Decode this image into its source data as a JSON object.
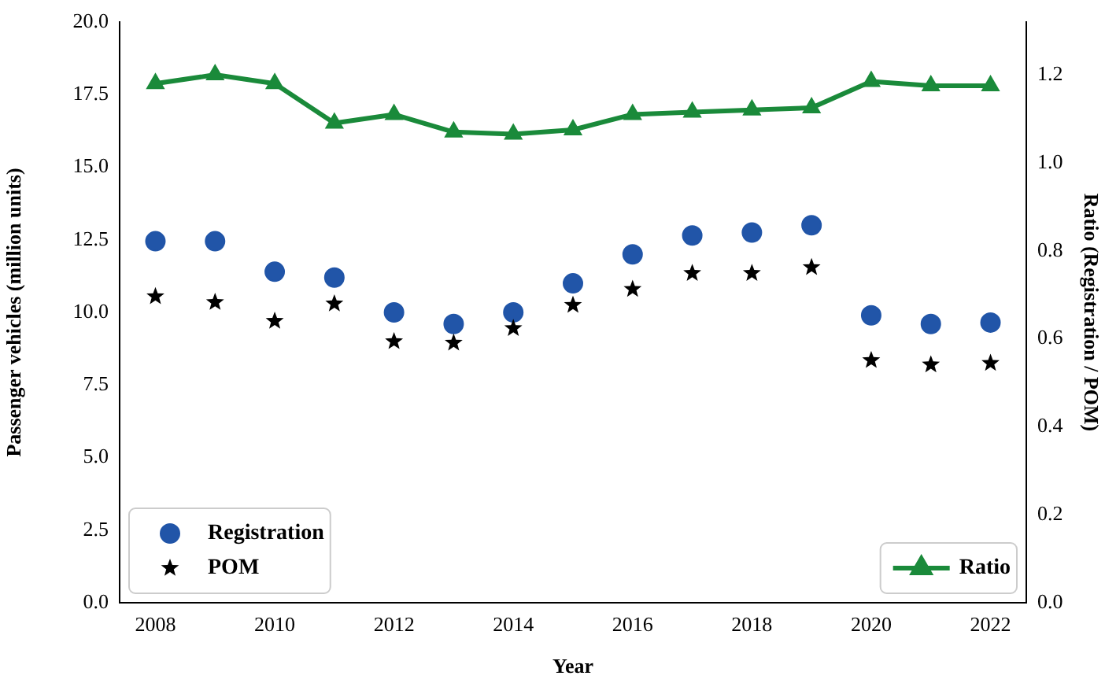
{
  "chart_data": {
    "type": "scatter",
    "xlabel": "Year",
    "ylabel": "Passenger vehicles (million units)",
    "y2label": "Ratio (Registration / POM)",
    "x": [
      2008,
      2009,
      2010,
      2011,
      2012,
      2013,
      2014,
      2015,
      2016,
      2017,
      2018,
      2019,
      2020,
      2021,
      2022
    ],
    "xlim": [
      2007.4,
      2022.6
    ],
    "xticks": [
      2008,
      2010,
      2012,
      2014,
      2016,
      2018,
      2020,
      2022
    ],
    "ylim": [
      0,
      20
    ],
    "yticks": [
      {
        "value": 0,
        "label": "0.0"
      },
      {
        "value": 2.5,
        "label": "2.5"
      },
      {
        "value": 5,
        "label": "5.0"
      },
      {
        "value": 7.5,
        "label": "7.5"
      },
      {
        "value": 10,
        "label": "10.0"
      },
      {
        "value": 12.5,
        "label": "12.5"
      },
      {
        "value": 15,
        "label": "15.0"
      },
      {
        "value": 17.5,
        "label": "17.5"
      },
      {
        "value": 20,
        "label": "20.0"
      }
    ],
    "y2lim": [
      0,
      1.32
    ],
    "y2ticks": [
      {
        "value": 0,
        "label": "0.0"
      },
      {
        "value": 0.2,
        "label": "0.2"
      },
      {
        "value": 0.4,
        "label": "0.4"
      },
      {
        "value": 0.6,
        "label": "0.6"
      },
      {
        "value": 0.8,
        "label": "0.8"
      },
      {
        "value": 1,
        "label": "1.0"
      },
      {
        "value": 1.2,
        "label": "1.2"
      }
    ],
    "legend": "bottom left",
    "grid": false,
    "series": [
      {
        "name": "Registration",
        "marker": "circle",
        "color": "#2155a8",
        "values": [
          12.45,
          12.45,
          11.4,
          11.2,
          10.0,
          9.6,
          10.0,
          11.0,
          12.0,
          12.65,
          12.75,
          13.0,
          9.9,
          9.6,
          9.65
        ]
      },
      {
        "name": "POM",
        "marker": "star",
        "color": "#000000",
        "values": [
          10.55,
          10.35,
          9.7,
          10.3,
          9.0,
          8.95,
          9.45,
          10.25,
          10.8,
          11.35,
          11.35,
          11.55,
          8.35,
          8.2,
          8.25
        ]
      },
      {
        "name": "Ratio",
        "type": "line",
        "axis": "y2",
        "marker": "triangle",
        "color": "#1a8a3a",
        "values": [
          1.18,
          1.2,
          1.18,
          1.09,
          1.11,
          1.07,
          1.065,
          1.075,
          1.11,
          1.115,
          1.12,
          1.125,
          1.185,
          1.175,
          1.175
        ]
      }
    ]
  }
}
